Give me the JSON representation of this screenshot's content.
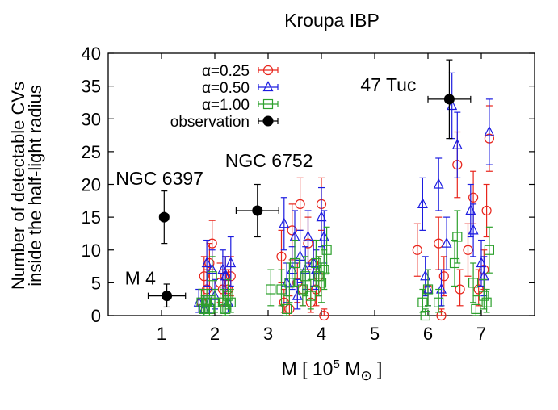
{
  "chart_data": {
    "type": "scatter",
    "title": "Kroupa IBP",
    "xlabel": {
      "prefix": "M [ 10",
      "exp": "5",
      "mid": " M",
      "sun": "⊙",
      "suffix": " ]"
    },
    "ylabel": [
      "Number of detectable CVs",
      "inside the half-light radius"
    ],
    "xlim": [
      0,
      8
    ],
    "ylim": [
      0,
      40
    ],
    "xticks": [
      1,
      2,
      3,
      4,
      5,
      6,
      7
    ],
    "yticks": [
      0,
      5,
      10,
      15,
      20,
      25,
      30,
      35,
      40
    ],
    "legend_position": "top-left",
    "series": [
      {
        "name": "α=0.25",
        "marker": "circle",
        "color": "#e8251c",
        "points": [
          {
            "x": 1.75,
            "y": 2,
            "lo": 0.5,
            "hi": 4
          },
          {
            "x": 1.8,
            "y": 6,
            "lo": 3,
            "hi": 9
          },
          {
            "x": 1.85,
            "y": 4,
            "lo": 1.5,
            "hi": 7
          },
          {
            "x": 1.9,
            "y": 8,
            "lo": 4,
            "hi": 11
          },
          {
            "x": 1.95,
            "y": 11,
            "lo": 7,
            "hi": 14.5
          },
          {
            "x": 2.1,
            "y": 5,
            "lo": 2,
            "hi": 8
          },
          {
            "x": 2.15,
            "y": 4,
            "lo": 1.5,
            "hi": 7
          },
          {
            "x": 2.2,
            "y": 6,
            "lo": 3,
            "hi": 9
          },
          {
            "x": 2.25,
            "y": 4,
            "lo": 1.5,
            "hi": 7
          },
          {
            "x": 2.3,
            "y": 6,
            "lo": 3,
            "hi": 9
          },
          {
            "x": 3.25,
            "y": 9,
            "lo": 5,
            "hi": 13
          },
          {
            "x": 3.3,
            "y": 2,
            "lo": 0.5,
            "hi": 4
          },
          {
            "x": 3.4,
            "y": 1,
            "lo": 0,
            "hi": 3
          },
          {
            "x": 3.45,
            "y": 13,
            "lo": 8.5,
            "hi": 17
          },
          {
            "x": 3.55,
            "y": 5,
            "lo": 2,
            "hi": 8
          },
          {
            "x": 3.6,
            "y": 17,
            "lo": 13,
            "hi": 21
          },
          {
            "x": 3.65,
            "y": 4,
            "lo": 1.5,
            "hi": 7
          },
          {
            "x": 3.75,
            "y": 11,
            "lo": 7,
            "hi": 15
          },
          {
            "x": 3.8,
            "y": 2,
            "lo": 0.5,
            "hi": 4
          },
          {
            "x": 3.85,
            "y": 8,
            "lo": 4.5,
            "hi": 11.5
          },
          {
            "x": 3.9,
            "y": 4,
            "lo": 1.5,
            "hi": 7
          },
          {
            "x": 3.95,
            "y": 6,
            "lo": 3,
            "hi": 9
          },
          {
            "x": 4.0,
            "y": 17,
            "lo": 13,
            "hi": 21
          },
          {
            "x": 4.05,
            "y": 0,
            "lo": 0,
            "hi": 1
          },
          {
            "x": 5.8,
            "y": 10,
            "lo": 6,
            "hi": 14
          },
          {
            "x": 6.0,
            "y": 4,
            "lo": 1.5,
            "hi": 7
          },
          {
            "x": 6.2,
            "y": 11,
            "lo": 7,
            "hi": 15
          },
          {
            "x": 6.25,
            "y": 0,
            "lo": 0,
            "hi": 1
          },
          {
            "x": 6.3,
            "y": 6,
            "lo": 3,
            "hi": 9
          },
          {
            "x": 6.55,
            "y": 23,
            "lo": 18,
            "hi": 28
          },
          {
            "x": 6.6,
            "y": 4,
            "lo": 1.5,
            "hi": 7
          },
          {
            "x": 6.75,
            "y": 10,
            "lo": 6,
            "hi": 14
          },
          {
            "x": 6.85,
            "y": 18,
            "lo": 14,
            "hi": 22
          },
          {
            "x": 6.95,
            "y": 4,
            "lo": 1.5,
            "hi": 7
          },
          {
            "x": 7.05,
            "y": 7,
            "lo": 4,
            "hi": 10
          },
          {
            "x": 7.1,
            "y": 16,
            "lo": 12,
            "hi": 20
          },
          {
            "x": 7.15,
            "y": 27,
            "lo": 22,
            "hi": 32
          }
        ]
      },
      {
        "name": "α=0.50",
        "marker": "triangle",
        "color": "#1c1ce0",
        "points": [
          {
            "x": 1.7,
            "y": 2,
            "lo": 0.5,
            "hi": 4
          },
          {
            "x": 1.8,
            "y": 1,
            "lo": 0,
            "hi": 3
          },
          {
            "x": 1.85,
            "y": 8,
            "lo": 4.5,
            "hi": 11.5
          },
          {
            "x": 1.9,
            "y": 2,
            "lo": 0.5,
            "hi": 4
          },
          {
            "x": 1.95,
            "y": 7,
            "lo": 4,
            "hi": 10
          },
          {
            "x": 2.0,
            "y": 3,
            "lo": 1,
            "hi": 5.5
          },
          {
            "x": 2.15,
            "y": 7,
            "lo": 4,
            "hi": 10
          },
          {
            "x": 2.2,
            "y": 6,
            "lo": 3,
            "hi": 9
          },
          {
            "x": 2.25,
            "y": 2,
            "lo": 0.5,
            "hi": 4
          },
          {
            "x": 2.3,
            "y": 8,
            "lo": 4.5,
            "hi": 12
          },
          {
            "x": 3.3,
            "y": 14,
            "lo": 10,
            "hi": 18
          },
          {
            "x": 3.35,
            "y": 5,
            "lo": 2,
            "hi": 8
          },
          {
            "x": 3.45,
            "y": 7,
            "lo": 4,
            "hi": 10.5
          },
          {
            "x": 3.5,
            "y": 12,
            "lo": 8,
            "hi": 16
          },
          {
            "x": 3.55,
            "y": 3,
            "lo": 1,
            "hi": 5.5
          },
          {
            "x": 3.6,
            "y": 9,
            "lo": 5,
            "hi": 13
          },
          {
            "x": 3.7,
            "y": 7,
            "lo": 4,
            "hi": 10.5
          },
          {
            "x": 3.75,
            "y": 12,
            "lo": 8,
            "hi": 16
          },
          {
            "x": 3.85,
            "y": 8,
            "lo": 4.5,
            "hi": 11.5
          },
          {
            "x": 3.9,
            "y": 7,
            "lo": 4,
            "hi": 10
          },
          {
            "x": 4.0,
            "y": 15,
            "lo": 10.5,
            "hi": 19.5
          },
          {
            "x": 4.05,
            "y": 12,
            "lo": 8,
            "hi": 16
          },
          {
            "x": 5.9,
            "y": 17,
            "lo": 13,
            "hi": 21
          },
          {
            "x": 5.95,
            "y": 6,
            "lo": 3,
            "hi": 9
          },
          {
            "x": 6.0,
            "y": 4,
            "lo": 1.5,
            "hi": 7
          },
          {
            "x": 6.2,
            "y": 20,
            "lo": 16,
            "hi": 24
          },
          {
            "x": 6.25,
            "y": 4,
            "lo": 1.5,
            "hi": 7
          },
          {
            "x": 6.35,
            "y": 11,
            "lo": 7,
            "hi": 15
          },
          {
            "x": 6.45,
            "y": 32,
            "lo": 27,
            "hi": 37
          },
          {
            "x": 6.55,
            "y": 26,
            "lo": 21,
            "hi": 31
          },
          {
            "x": 6.8,
            "y": 16,
            "lo": 12,
            "hi": 20
          },
          {
            "x": 6.85,
            "y": 13,
            "lo": 9,
            "hi": 17
          },
          {
            "x": 7.0,
            "y": 8,
            "lo": 4.5,
            "hi": 11.5
          },
          {
            "x": 7.05,
            "y": 6,
            "lo": 3,
            "hi": 9
          },
          {
            "x": 7.15,
            "y": 28,
            "lo": 23,
            "hi": 33
          }
        ]
      },
      {
        "name": "α=1.00",
        "marker": "square",
        "color": "#2ca02c",
        "points": [
          {
            "x": 1.75,
            "y": 2,
            "lo": 0.5,
            "hi": 4
          },
          {
            "x": 1.8,
            "y": 1,
            "lo": 0,
            "hi": 3
          },
          {
            "x": 1.85,
            "y": 2,
            "lo": 0.5,
            "hi": 4
          },
          {
            "x": 1.9,
            "y": 1,
            "lo": 0,
            "hi": 3
          },
          {
            "x": 1.95,
            "y": 6,
            "lo": 3,
            "hi": 9
          },
          {
            "x": 2.0,
            "y": 2,
            "lo": 0.5,
            "hi": 4
          },
          {
            "x": 2.15,
            "y": 2,
            "lo": 0.5,
            "hi": 4
          },
          {
            "x": 2.2,
            "y": 1,
            "lo": 0,
            "hi": 3
          },
          {
            "x": 2.25,
            "y": 3,
            "lo": 1,
            "hi": 5.5
          },
          {
            "x": 2.3,
            "y": 2,
            "lo": 0.5,
            "hi": 4
          },
          {
            "x": 3.05,
            "y": 4,
            "lo": 1.5,
            "hi": 7
          },
          {
            "x": 3.25,
            "y": 4,
            "lo": 1.5,
            "hi": 7
          },
          {
            "x": 3.35,
            "y": 1,
            "lo": 0,
            "hi": 3
          },
          {
            "x": 3.4,
            "y": 5,
            "lo": 2,
            "hi": 8
          },
          {
            "x": 3.5,
            "y": 8,
            "lo": 4.5,
            "hi": 11.5
          },
          {
            "x": 3.65,
            "y": 4,
            "lo": 1.5,
            "hi": 7
          },
          {
            "x": 3.7,
            "y": 6,
            "lo": 3,
            "hi": 9
          },
          {
            "x": 3.8,
            "y": 3,
            "lo": 1,
            "hi": 5.5
          },
          {
            "x": 3.9,
            "y": 8,
            "lo": 4.5,
            "hi": 11.5
          },
          {
            "x": 3.95,
            "y": 6,
            "lo": 3,
            "hi": 9
          },
          {
            "x": 4.0,
            "y": 5,
            "lo": 2,
            "hi": 8
          },
          {
            "x": 4.05,
            "y": 7,
            "lo": 4,
            "hi": 10
          },
          {
            "x": 4.1,
            "y": 10,
            "lo": 6.5,
            "hi": 13.5
          },
          {
            "x": 5.9,
            "y": 2,
            "lo": 0.5,
            "hi": 4
          },
          {
            "x": 5.95,
            "y": 0,
            "lo": 0,
            "hi": 1
          },
          {
            "x": 6.0,
            "y": 4,
            "lo": 1.5,
            "hi": 7
          },
          {
            "x": 6.2,
            "y": 2,
            "lo": 0.5,
            "hi": 4
          },
          {
            "x": 6.5,
            "y": 8,
            "lo": 4.5,
            "hi": 11.5
          },
          {
            "x": 6.55,
            "y": 12,
            "lo": 8,
            "hi": 16
          },
          {
            "x": 6.85,
            "y": 5,
            "lo": 2,
            "hi": 8
          },
          {
            "x": 6.9,
            "y": 1,
            "lo": 0,
            "hi": 3
          },
          {
            "x": 7.05,
            "y": 3,
            "lo": 1,
            "hi": 5.5
          },
          {
            "x": 7.1,
            "y": 2,
            "lo": 0.5,
            "hi": 4
          },
          {
            "x": 7.15,
            "y": 10,
            "lo": 6.5,
            "hi": 13.5
          }
        ]
      },
      {
        "name": "observation",
        "marker": "filled-circle",
        "color": "#000000",
        "points": [
          {
            "label": "M 4",
            "x": 1.1,
            "y": 3,
            "xerr": 0.35,
            "lo": 1.3,
            "hi": 4.8
          },
          {
            "label": "NGC 6397",
            "x": 1.05,
            "y": 15,
            "xerr": 0.08,
            "lo": 11,
            "hi": 19
          },
          {
            "label": "NGC 6752",
            "x": 2.8,
            "y": 16,
            "xerr": 0.4,
            "lo": 12,
            "hi": 20
          },
          {
            "label": "47 Tuc",
            "x": 6.4,
            "y": 33,
            "xerr": 0.4,
            "lo": 27,
            "hi": 39
          }
        ]
      }
    ]
  }
}
